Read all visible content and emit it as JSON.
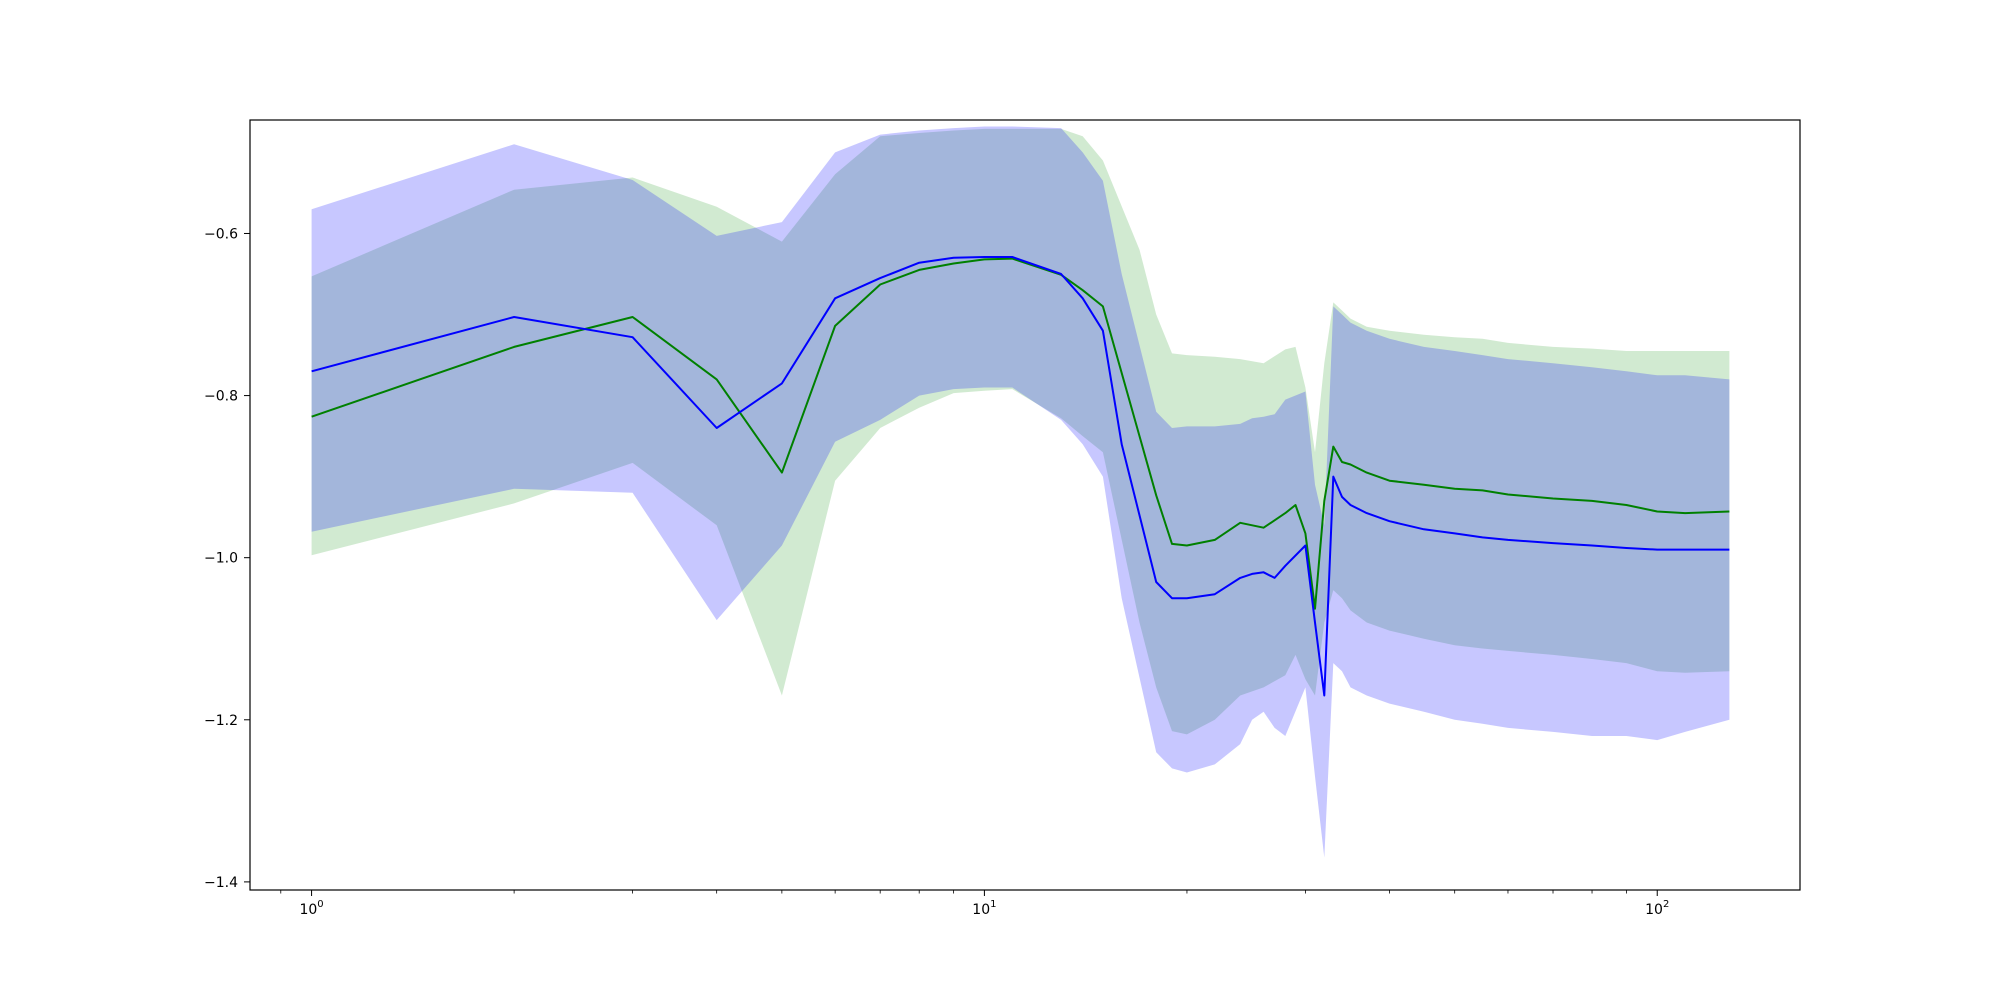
{
  "chart_data": {
    "type": "line",
    "title": "",
    "xlabel": "",
    "ylabel": "",
    "xscale": "log",
    "xlim": [
      0.81,
      163
    ],
    "ylim": [
      -1.41,
      -0.46
    ],
    "grid": false,
    "legend": "none",
    "yticks": [
      -1.4,
      -1.2,
      -1.0,
      -0.8,
      -0.6
    ],
    "ytick_labels": [
      "−1.4",
      "−1.2",
      "−1.0",
      "−0.8",
      "−0.6"
    ],
    "xticks": [
      1,
      10,
      100
    ],
    "xtick_labels": [
      {
        "base": "10",
        "exp": "0"
      },
      {
        "base": "10",
        "exp": "1"
      },
      {
        "base": "10",
        "exp": "2"
      }
    ],
    "series": [
      {
        "color": "#008000",
        "band_color": "#2ca02c",
        "x": [
          1,
          2,
          3,
          4,
          5,
          6,
          7,
          8,
          9,
          10,
          11,
          13,
          14,
          15,
          17,
          18,
          19,
          20,
          22,
          24,
          26,
          28,
          29,
          30,
          31,
          32,
          33,
          34,
          35,
          37,
          40,
          45,
          50,
          55,
          60,
          70,
          80,
          90,
          100,
          110,
          128
        ],
        "mean": [
          -0.826,
          -0.74,
          -0.703,
          -0.78,
          -0.895,
          -0.714,
          -0.663,
          -0.645,
          -0.637,
          -0.632,
          -0.631,
          -0.651,
          -0.67,
          -0.69,
          -0.85,
          -0.923,
          -0.983,
          -0.985,
          -0.978,
          -0.957,
          -0.963,
          -0.945,
          -0.935,
          -0.97,
          -1.063,
          -0.93,
          -0.863,
          -0.882,
          -0.885,
          -0.895,
          -0.905,
          -0.91,
          -0.915,
          -0.917,
          -0.922,
          -0.927,
          -0.93,
          -0.935,
          -0.943,
          -0.945,
          -0.943
        ],
        "upper": [
          -0.653,
          -0.546,
          -0.531,
          -0.567,
          -0.61,
          -0.527,
          -0.48,
          -0.476,
          -0.473,
          -0.471,
          -0.471,
          -0.471,
          -0.48,
          -0.51,
          -0.62,
          -0.7,
          -0.748,
          -0.75,
          -0.752,
          -0.755,
          -0.76,
          -0.743,
          -0.74,
          -0.79,
          -0.87,
          -0.76,
          -0.685,
          -0.695,
          -0.705,
          -0.715,
          -0.72,
          -0.725,
          -0.728,
          -0.73,
          -0.735,
          -0.74,
          -0.742,
          -0.745,
          -0.745,
          -0.745,
          -0.745
        ],
        "lower": [
          -0.997,
          -0.933,
          -0.883,
          -0.96,
          -1.17,
          -0.905,
          -0.84,
          -0.815,
          -0.797,
          -0.794,
          -0.792,
          -0.828,
          -0.85,
          -0.87,
          -1.08,
          -1.16,
          -1.214,
          -1.218,
          -1.2,
          -1.17,
          -1.16,
          -1.145,
          -1.12,
          -1.15,
          -1.17,
          -1.08,
          -1.04,
          -1.05,
          -1.065,
          -1.08,
          -1.09,
          -1.1,
          -1.108,
          -1.112,
          -1.115,
          -1.12,
          -1.125,
          -1.13,
          -1.14,
          -1.142,
          -1.14
        ]
      },
      {
        "color": "#0000ff",
        "band_color": "#0000ff",
        "x": [
          1,
          2,
          3,
          4,
          5,
          6,
          7,
          8,
          9,
          10,
          11,
          13,
          14,
          15,
          16,
          18,
          19,
          20,
          22,
          24,
          25,
          26,
          27,
          28,
          30,
          31,
          32,
          33,
          34,
          35,
          37,
          40,
          45,
          50,
          55,
          60,
          70,
          80,
          90,
          100,
          110,
          128
        ],
        "mean": [
          -0.77,
          -0.703,
          -0.728,
          -0.84,
          -0.785,
          -0.68,
          -0.655,
          -0.636,
          -0.63,
          -0.629,
          -0.629,
          -0.65,
          -0.68,
          -0.72,
          -0.86,
          -1.03,
          -1.05,
          -1.05,
          -1.045,
          -1.025,
          -1.02,
          -1.018,
          -1.025,
          -1.01,
          -0.985,
          -1.08,
          -1.17,
          -0.9,
          -0.925,
          -0.935,
          -0.945,
          -0.955,
          -0.965,
          -0.97,
          -0.975,
          -0.978,
          -0.982,
          -0.985,
          -0.988,
          -0.99,
          -0.99,
          -0.99
        ],
        "upper": [
          -0.57,
          -0.49,
          -0.534,
          -0.603,
          -0.586,
          -0.5,
          -0.478,
          -0.473,
          -0.47,
          -0.468,
          -0.468,
          -0.47,
          -0.5,
          -0.535,
          -0.65,
          -0.82,
          -0.84,
          -0.838,
          -0.838,
          -0.835,
          -0.828,
          -0.826,
          -0.823,
          -0.805,
          -0.795,
          -0.91,
          -0.96,
          -0.69,
          -0.7,
          -0.71,
          -0.72,
          -0.73,
          -0.74,
          -0.745,
          -0.75,
          -0.755,
          -0.76,
          -0.765,
          -0.77,
          -0.775,
          -0.775,
          -0.78
        ],
        "lower": [
          -0.968,
          -0.915,
          -0.92,
          -1.077,
          -0.985,
          -0.857,
          -0.83,
          -0.8,
          -0.792,
          -0.79,
          -0.79,
          -0.83,
          -0.86,
          -0.9,
          -1.05,
          -1.24,
          -1.26,
          -1.265,
          -1.255,
          -1.23,
          -1.2,
          -1.19,
          -1.21,
          -1.22,
          -1.16,
          -1.27,
          -1.37,
          -1.13,
          -1.14,
          -1.16,
          -1.17,
          -1.18,
          -1.19,
          -1.2,
          -1.205,
          -1.21,
          -1.215,
          -1.22,
          -1.22,
          -1.225,
          -1.215,
          -1.2
        ]
      }
    ]
  }
}
